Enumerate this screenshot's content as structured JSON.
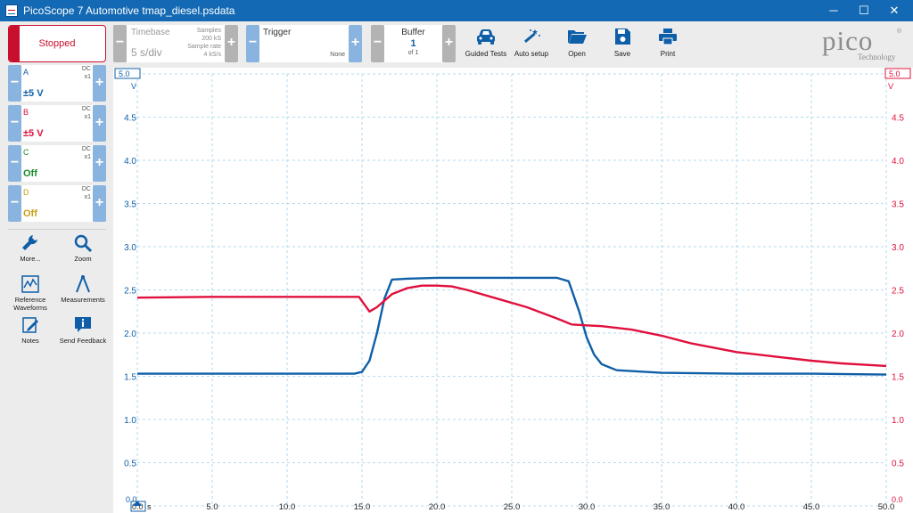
{
  "window": {
    "title": "PicoScope 7 Automotive tmap_diesel.psdata",
    "minimize": "─",
    "maximize": "☐",
    "close": "✕"
  },
  "toolbar": {
    "run_state": "Stopped",
    "timebase": {
      "label": "Timebase",
      "value": "5 s/div",
      "samples_label": "Samples",
      "samples_value": "200 kS",
      "rate_label": "Sample rate",
      "rate_value": "4 kS/s"
    },
    "trigger": {
      "label": "Trigger",
      "value": "None"
    },
    "buffer": {
      "label": "Buffer",
      "value": "1",
      "of": "of 1"
    },
    "tools": [
      {
        "label": "Guided Tests",
        "icon": "car-icon"
      },
      {
        "label": "Auto setup",
        "icon": "magic-wand-icon"
      },
      {
        "label": "Open",
        "icon": "folder-icon"
      },
      {
        "label": "Save",
        "icon": "floppy-icon"
      },
      {
        "label": "Print",
        "icon": "printer-icon"
      }
    ],
    "logo": {
      "word": "pico",
      "reg": "®",
      "sub": "Technology"
    }
  },
  "channels": [
    {
      "name": "A",
      "coupling": "DC",
      "probe": "x1",
      "range": "±5 V",
      "color": "#0f5fa8"
    },
    {
      "name": "B",
      "coupling": "DC",
      "probe": "x1",
      "range": "±5 V",
      "color": "#e0103c"
    },
    {
      "name": "C",
      "coupling": "DC",
      "probe": "x1",
      "range": "Off",
      "color": "#1a8c2a"
    },
    {
      "name": "D",
      "coupling": "DC",
      "probe": "x1",
      "range": "Off",
      "color": "#c9a01a"
    }
  ],
  "side_tools": [
    {
      "label": "More...",
      "icon": "wrench-icon"
    },
    {
      "label": "Zoom",
      "icon": "magnifier-icon"
    },
    {
      "label": "Reference Waveforms",
      "icon": "reference-waveform-icon"
    },
    {
      "label": "Measurements",
      "icon": "caliper-icon"
    },
    {
      "label": "Notes",
      "icon": "notes-icon"
    },
    {
      "label": "Send Feedback",
      "icon": "feedback-icon"
    }
  ],
  "chart_data": {
    "type": "line",
    "x_unit": "s",
    "y_unit_left": "V",
    "y_unit_right": "V",
    "xlim": [
      0,
      50
    ],
    "ylim": [
      0,
      5
    ],
    "x_ticks": [
      "0.0",
      "5.0",
      "10.0",
      "15.0",
      "20.0",
      "25.0",
      "30.0",
      "35.0",
      "40.0",
      "45.0",
      "50.0"
    ],
    "y_ticks": [
      "0.0",
      "0.5",
      "1.0",
      "1.5",
      "2.0",
      "2.5",
      "3.0",
      "3.5",
      "4.0",
      "4.5",
      "5.0"
    ],
    "grid": true,
    "series": [
      {
        "channel": "A",
        "color": "#0f5fa8",
        "x": [
          0,
          5,
          10,
          14.5,
          15.0,
          15.5,
          16.0,
          16.5,
          17.0,
          18.0,
          20.0,
          22.0,
          25.0,
          28.0,
          28.8,
          29.5,
          30.0,
          30.5,
          31.0,
          32.0,
          35.0,
          40.0,
          45.0,
          50.0
        ],
        "y": [
          1.53,
          1.53,
          1.53,
          1.53,
          1.55,
          1.68,
          2.0,
          2.4,
          2.62,
          2.63,
          2.64,
          2.64,
          2.64,
          2.64,
          2.6,
          2.25,
          1.95,
          1.75,
          1.64,
          1.57,
          1.54,
          1.53,
          1.53,
          1.52
        ]
      },
      {
        "channel": "B",
        "color": "#e0103c",
        "x": [
          0,
          5,
          10,
          14.8,
          15.5,
          16.0,
          17.0,
          18.0,
          19.0,
          20.0,
          21.0,
          22.0,
          24.0,
          26.0,
          28.0,
          29.0,
          30.0,
          31.0,
          33.0,
          35.0,
          37.0,
          40.0,
          43.0,
          45.0,
          47.0,
          50.0
        ],
        "y": [
          2.41,
          2.42,
          2.42,
          2.42,
          2.25,
          2.3,
          2.45,
          2.52,
          2.55,
          2.55,
          2.54,
          2.5,
          2.4,
          2.3,
          2.17,
          2.1,
          2.09,
          2.08,
          2.04,
          1.97,
          1.88,
          1.78,
          1.72,
          1.68,
          1.65,
          1.62
        ]
      }
    ]
  }
}
